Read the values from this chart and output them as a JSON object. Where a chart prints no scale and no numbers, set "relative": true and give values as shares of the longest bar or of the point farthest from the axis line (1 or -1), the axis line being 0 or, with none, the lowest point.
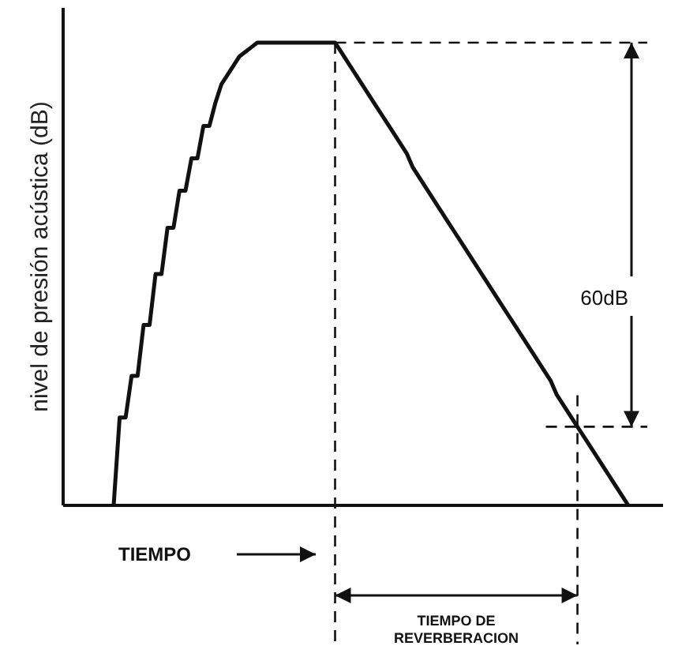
{
  "chart_data": {
    "type": "line",
    "relative": true,
    "ylabel": "nivel de presión acústica (dB)",
    "line_style": "solid",
    "categories": [
      null,
      null,
      null,
      null,
      null,
      null,
      null,
      null,
      null,
      null,
      null,
      null,
      null,
      null,
      null,
      null,
      null,
      null,
      null,
      null,
      null,
      null,
      null,
      null,
      null,
      null,
      null,
      null,
      null,
      null,
      null,
      null,
      null,
      null,
      null,
      null,
      null,
      null,
      null,
      null,
      null,
      null,
      null,
      null,
      null,
      null,
      null,
      null,
      null,
      null,
      null,
      null,
      null,
      null,
      null,
      null,
      null,
      null,
      null,
      null,
      null,
      null,
      null,
      null,
      null,
      null,
      null,
      null,
      null,
      null,
      null,
      null,
      null,
      null,
      null,
      null,
      null,
      null,
      null,
      null,
      null,
      null,
      null,
      null,
      null,
      null,
      null
    ],
    "series": [
      {
        "color": "#111111",
        "values": [
          0,
          0.19,
          0.19,
          0.28,
          0.28,
          0.39,
          0.39,
          0.5,
          0.5,
          0.6,
          0.6,
          0.68,
          0.68,
          0.75,
          0.75,
          0.82,
          0.82,
          0.87,
          0.91,
          0.93,
          0.95,
          0.97,
          0.98,
          0.99,
          1,
          1,
          1,
          1,
          1,
          1,
          1,
          1,
          1,
          1,
          1,
          1,
          1,
          1,
          0.98,
          0.96,
          0.94,
          0.92,
          0.9,
          0.88,
          0.86,
          0.84,
          0.82,
          0.8,
          0.78,
          0.76,
          0.73,
          0.71,
          0.69,
          0.67,
          0.65,
          0.63,
          0.61,
          0.59,
          0.57,
          0.55,
          0.53,
          0.51,
          0.49,
          0.47,
          0.45,
          0.43,
          0.41,
          0.39,
          0.37,
          0.35,
          0.33,
          0.31,
          0.29,
          0.27,
          0.24,
          0.22,
          0.2,
          0.18,
          0.16,
          0.14,
          0.12,
          0.1,
          0.08,
          0.06,
          0.04,
          0.02,
          0
        ]
      }
    ],
    "ref_lines": [
      {
        "axis": "y",
        "value": 1,
        "line_style": "dashed",
        "color": "#111111"
      },
      {
        "axis": "y",
        "value": 0.17,
        "line_style": "dashed",
        "color": "#111111"
      }
    ],
    "annotations": [
      "60dB",
      "TIEMPO",
      "TIEMPO DE REVERBERACION"
    ]
  }
}
